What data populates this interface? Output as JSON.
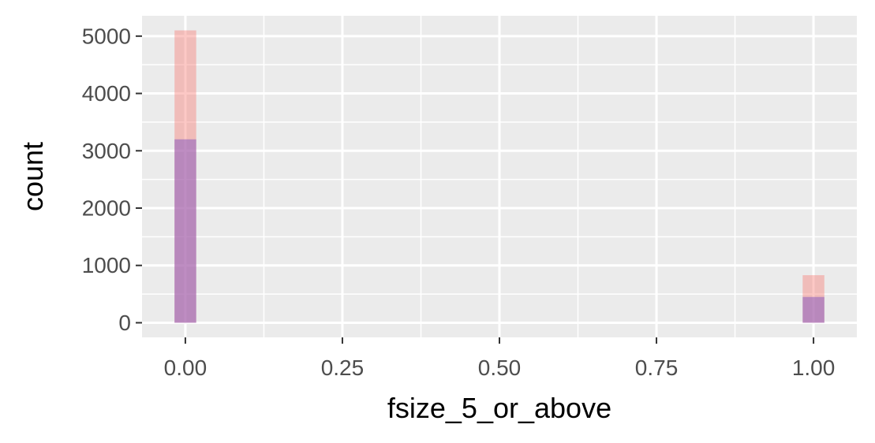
{
  "chart_data": {
    "type": "bar",
    "subtype": "overlapping-histogram",
    "xlabel": "fsize_5_or_above",
    "ylabel": "count",
    "xlim": [
      -0.069,
      1.069
    ],
    "ylim": [
      -255,
      5355
    ],
    "x_ticks": [
      {
        "value": 0,
        "label": "0.00"
      },
      {
        "value": 0.25,
        "label": "0.25"
      },
      {
        "value": 0.5,
        "label": "0.50"
      },
      {
        "value": 0.75,
        "label": "0.75"
      },
      {
        "value": 1,
        "label": "1.00"
      }
    ],
    "y_ticks": [
      {
        "value": 0,
        "label": "0"
      },
      {
        "value": 1000,
        "label": "1000"
      },
      {
        "value": 2000,
        "label": "2000"
      },
      {
        "value": 3000,
        "label": "3000"
      },
      {
        "value": 4000,
        "label": "4000"
      },
      {
        "value": 5000,
        "label": "5000"
      }
    ],
    "bin_width": 0.0345,
    "legend": "none",
    "grid": true,
    "panel_background": "#ebebeb",
    "grid_color": "#ffffff",
    "series": [
      {
        "color": "#f8766d",
        "opacity": 0.4,
        "points": [
          {
            "x": 0,
            "count": 5100
          },
          {
            "x": 1,
            "count": 830
          }
        ]
      },
      {
        "color": "#8a5cc0",
        "opacity": 0.55,
        "points": [
          {
            "x": 0,
            "count": 3200
          },
          {
            "x": 1,
            "count": 450
          }
        ]
      }
    ]
  }
}
